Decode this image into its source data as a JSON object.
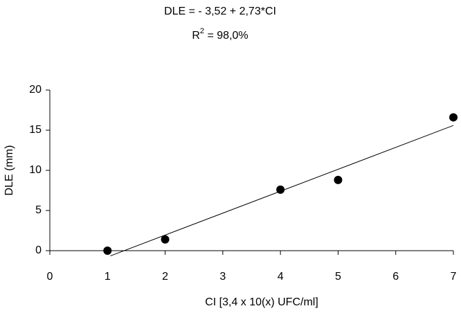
{
  "chart_data": {
    "type": "scatter",
    "title": "DLE = - 3,52 + 2,73*CI",
    "subtitle": [
      "R",
      "2",
      " = 98,0%"
    ],
    "x_label": "CI [3,4 x 10(x) UFC/ml]",
    "y_label": "DLE (mm)",
    "x": [
      1,
      2,
      4,
      5,
      7
    ],
    "values": [
      0,
      1.4,
      7.6,
      8.8,
      16.6
    ],
    "color": "#000000",
    "fit": {
      "x": [
        1.05,
        7
      ],
      "values": [
        -0.65,
        15.59
      ],
      "color": "#000000"
    },
    "xlim": [
      0,
      7
    ],
    "xticks": [
      0,
      1,
      2,
      3,
      4,
      5,
      6,
      7
    ],
    "ylim": [
      0,
      20
    ],
    "yticks": [
      0,
      5,
      10,
      15,
      20
    ],
    "grid": false
  }
}
